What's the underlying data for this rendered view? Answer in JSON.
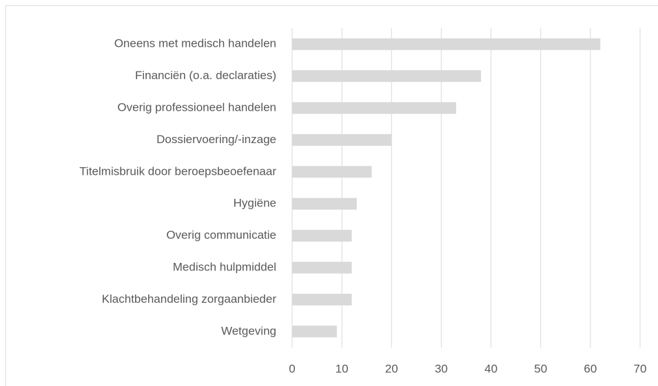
{
  "chart_data": {
    "type": "hbar",
    "categories": [
      "Oneens met medisch handelen",
      "Financiën (o.a. declaraties)",
      "Overig professioneel handelen",
      "Dossiervoering/-inzage",
      "Titelmisbruik door beroepsbeoefenaar",
      "Hygiëne",
      "Overig communicatie",
      "Medisch hulpmiddel",
      "Klachtbehandeling zorgaanbieder",
      "Wetgeving"
    ],
    "values": [
      62,
      38,
      33,
      20,
      16,
      13,
      12,
      12,
      12,
      9
    ],
    "color": "#d9d9d9",
    "xlim": [
      0,
      70
    ],
    "xticks": [
      0,
      10,
      20,
      30,
      40,
      50,
      60,
      70
    ],
    "grid": true
  }
}
